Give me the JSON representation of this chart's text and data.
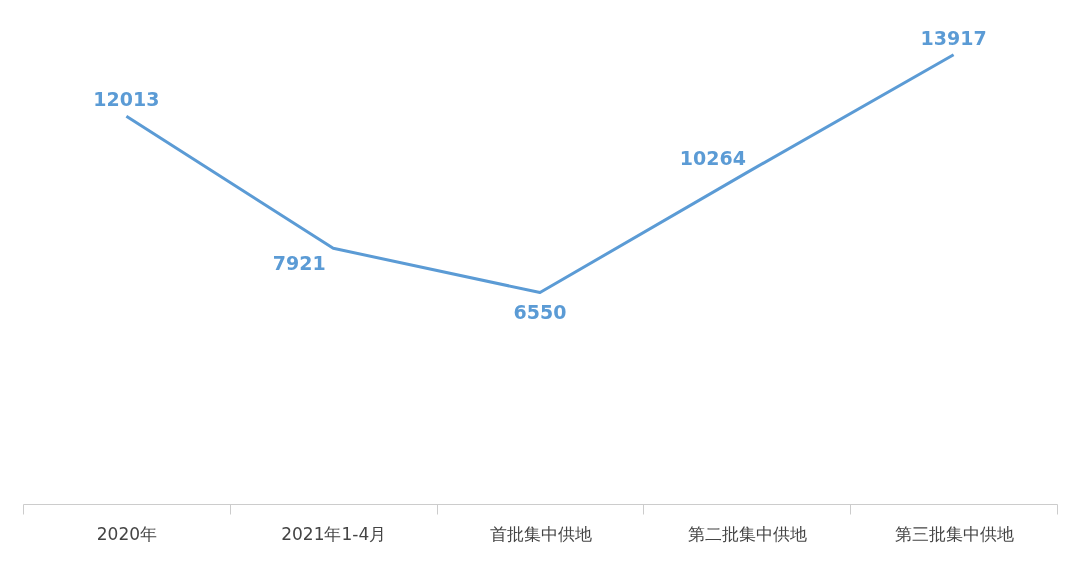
{
  "chart_data": {
    "type": "line",
    "categories": [
      "2020年",
      "2021年1-4月",
      "首批集中供地",
      "第二批集中供地",
      "第三批集中供地"
    ],
    "series": [
      {
        "color": "#5b9bd5",
        "values": [
          12013,
          7921,
          6550,
          10264,
          13917
        ]
      }
    ],
    "data_labels": true,
    "grid": false,
    "line_style": "solid",
    "tick_labels": "x"
  }
}
